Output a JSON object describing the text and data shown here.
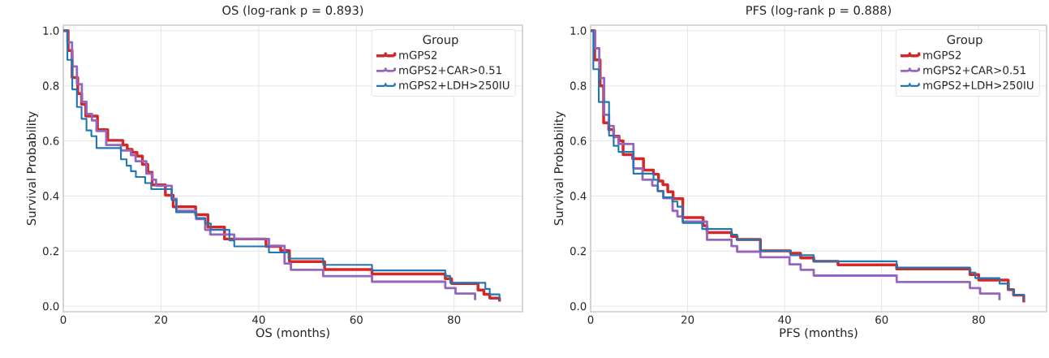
{
  "chart_data": [
    {
      "type": "step",
      "title": "OS (log-rank p = 0.893)",
      "xlabel": "OS (months)",
      "ylabel": "Survival Probability",
      "legend_title": "Group",
      "legend": "top right",
      "grid": true,
      "xlim": [
        0,
        94
      ],
      "ylim": [
        -0.02,
        1.02
      ],
      "xticks": [
        0,
        20,
        40,
        60,
        80
      ],
      "yticks": [
        {
          "value": 0,
          "label": "0.0"
        },
        {
          "value": 0.2,
          "label": "0.2"
        },
        {
          "value": 0.4,
          "label": "0.4"
        },
        {
          "value": 0.6,
          "label": "0.6"
        },
        {
          "value": 0.8,
          "label": "0.8"
        },
        {
          "value": 1,
          "label": "1.0"
        }
      ],
      "series": [
        {
          "name": "mGPS2",
          "color": "#d62728",
          "x": [
            0,
            1.0,
            1.8,
            2.96,
            3.74,
            4.6,
            7.0,
            9.1,
            12.2,
            13.1,
            14.1,
            15.1,
            16.2,
            17.3,
            18.2,
            20.9,
            22.5,
            27.1,
            29.6,
            33.0,
            41.5,
            44.5,
            46.3,
            53.5,
            63.2,
            78.2,
            79.5,
            84.9,
            86.1,
            87.3,
            89.3
          ],
          "values": [
            1,
            0.928,
            0.83,
            0.772,
            0.733,
            0.69,
            0.641,
            0.602,
            0.585,
            0.569,
            0.558,
            0.545,
            0.515,
            0.486,
            0.44,
            0.403,
            0.361,
            0.332,
            0.287,
            0.244,
            0.217,
            0.202,
            0.162,
            0.133,
            0.117,
            0.1,
            0.082,
            0.059,
            0.043,
            0.029,
            0.017
          ]
        },
        {
          "name": "mGPS2+CAR>0.51",
          "color": "#9467bd",
          "x": [
            0,
            0.84,
            1.79,
            2.79,
            3.8,
            4.75,
            5.87,
            6.8,
            8.8,
            11.8,
            13.85,
            14.8,
            17.0,
            18.2,
            19.0,
            22.2,
            23.2,
            27.2,
            29.05,
            30.1,
            35.0,
            42.1,
            45.3,
            46.6,
            53.2,
            63.2,
            78.2,
            80.3,
            84.3
          ],
          "values": [
            1,
            0.958,
            0.87,
            0.806,
            0.742,
            0.698,
            0.674,
            0.636,
            0.585,
            0.565,
            0.548,
            0.526,
            0.481,
            0.459,
            0.437,
            0.39,
            0.346,
            0.316,
            0.277,
            0.26,
            0.244,
            0.219,
            0.155,
            0.132,
            0.109,
            0.089,
            0.066,
            0.046,
            0.022
          ]
        },
        {
          "name": "mGPS2+LDH>250IU",
          "color": "#1f77b4",
          "x": [
            0,
            0.84,
            1.84,
            2.79,
            3.74,
            4.75,
            5.75,
            6.8,
            11.8,
            12.96,
            13.85,
            14.86,
            16.76,
            18.0,
            22.2,
            23.1,
            27.2,
            29.05,
            30.2,
            34.0,
            35.0,
            42.1,
            46.1,
            53.2,
            63.2,
            78.2,
            79.2,
            86.4,
            87.3,
            89.3
          ],
          "values": [
            1,
            0.894,
            0.787,
            0.723,
            0.68,
            0.638,
            0.617,
            0.574,
            0.533,
            0.51,
            0.49,
            0.469,
            0.447,
            0.425,
            0.385,
            0.341,
            0.32,
            0.3,
            0.277,
            0.239,
            0.217,
            0.195,
            0.173,
            0.15,
            0.13,
            0.11,
            0.085,
            0.063,
            0.043,
            0.02
          ]
        }
      ]
    },
    {
      "type": "step",
      "title": "PFS (log-rank p = 0.888)",
      "xlabel": "PFS (months)",
      "ylabel": "Survival Probability",
      "legend_title": "Group",
      "legend": "top right",
      "grid": true,
      "xlim": [
        0,
        94
      ],
      "ylim": [
        -0.02,
        1.02
      ],
      "xticks": [
        0,
        20,
        40,
        60,
        80
      ],
      "yticks": [
        {
          "value": 0,
          "label": "0.0"
        },
        {
          "value": 0.2,
          "label": "0.2"
        },
        {
          "value": 0.4,
          "label": "0.4"
        },
        {
          "value": 0.6,
          "label": "0.6"
        },
        {
          "value": 0.8,
          "label": "0.8"
        },
        {
          "value": 1,
          "label": "1.0"
        }
      ],
      "series": [
        {
          "name": "mGPS2",
          "color": "#d62728",
          "x": [
            0,
            0.84,
            1.96,
            2.68,
            3.74,
            4.75,
            5.87,
            6.7,
            8.66,
            10.9,
            12.96,
            14.0,
            14.9,
            15.9,
            17.0,
            19.0,
            23.2,
            24.0,
            29.05,
            30.2,
            35.0,
            41.2,
            43.3,
            46.0,
            51.0,
            63.1,
            78.2,
            80.0,
            86.1,
            87.2,
            89.3
          ],
          "values": [
            1,
            0.894,
            0.8,
            0.666,
            0.641,
            0.617,
            0.6,
            0.55,
            0.535,
            0.494,
            0.479,
            0.454,
            0.441,
            0.415,
            0.39,
            0.322,
            0.292,
            0.267,
            0.253,
            0.242,
            0.201,
            0.192,
            0.175,
            0.163,
            0.15,
            0.135,
            0.115,
            0.095,
            0.06,
            0.04,
            0.014
          ]
        },
        {
          "name": "mGPS2+CAR>0.51",
          "color": "#9467bd",
          "x": [
            0,
            0.84,
            1.79,
            2.79,
            3.8,
            4.75,
            5.75,
            8.83,
            10.7,
            12.7,
            13.85,
            15.0,
            16.9,
            17.9,
            19.0,
            24.0,
            29.05,
            30.2,
            35.0,
            41.0,
            43.3,
            46.0,
            63.1,
            78.2,
            80.3,
            84.3
          ],
          "values": [
            1,
            0.936,
            0.828,
            0.695,
            0.654,
            0.614,
            0.589,
            0.5,
            0.459,
            0.438,
            0.418,
            0.392,
            0.346,
            0.326,
            0.307,
            0.241,
            0.218,
            0.198,
            0.178,
            0.152,
            0.132,
            0.111,
            0.088,
            0.066,
            0.046,
            0.022
          ]
        },
        {
          "name": "mGPS2+LDH>250IU",
          "color": "#1f77b4",
          "x": [
            0,
            0.56,
            1.68,
            3.8,
            4.75,
            5.75,
            8.83,
            12.96,
            13.85,
            14.97,
            16.87,
            17.9,
            19.0,
            23.0,
            29.05,
            30.2,
            35.0,
            41.2,
            46.0,
            63.1,
            78.2,
            79.3,
            84.3,
            86.2,
            87.2,
            89.3
          ],
          "values": [
            1,
            0.86,
            0.741,
            0.619,
            0.582,
            0.56,
            0.481,
            0.459,
            0.418,
            0.395,
            0.38,
            0.361,
            0.302,
            0.28,
            0.26,
            0.241,
            0.201,
            0.185,
            0.163,
            0.14,
            0.122,
            0.102,
            0.082,
            0.061,
            0.041,
            0.02
          ]
        }
      ]
    }
  ]
}
